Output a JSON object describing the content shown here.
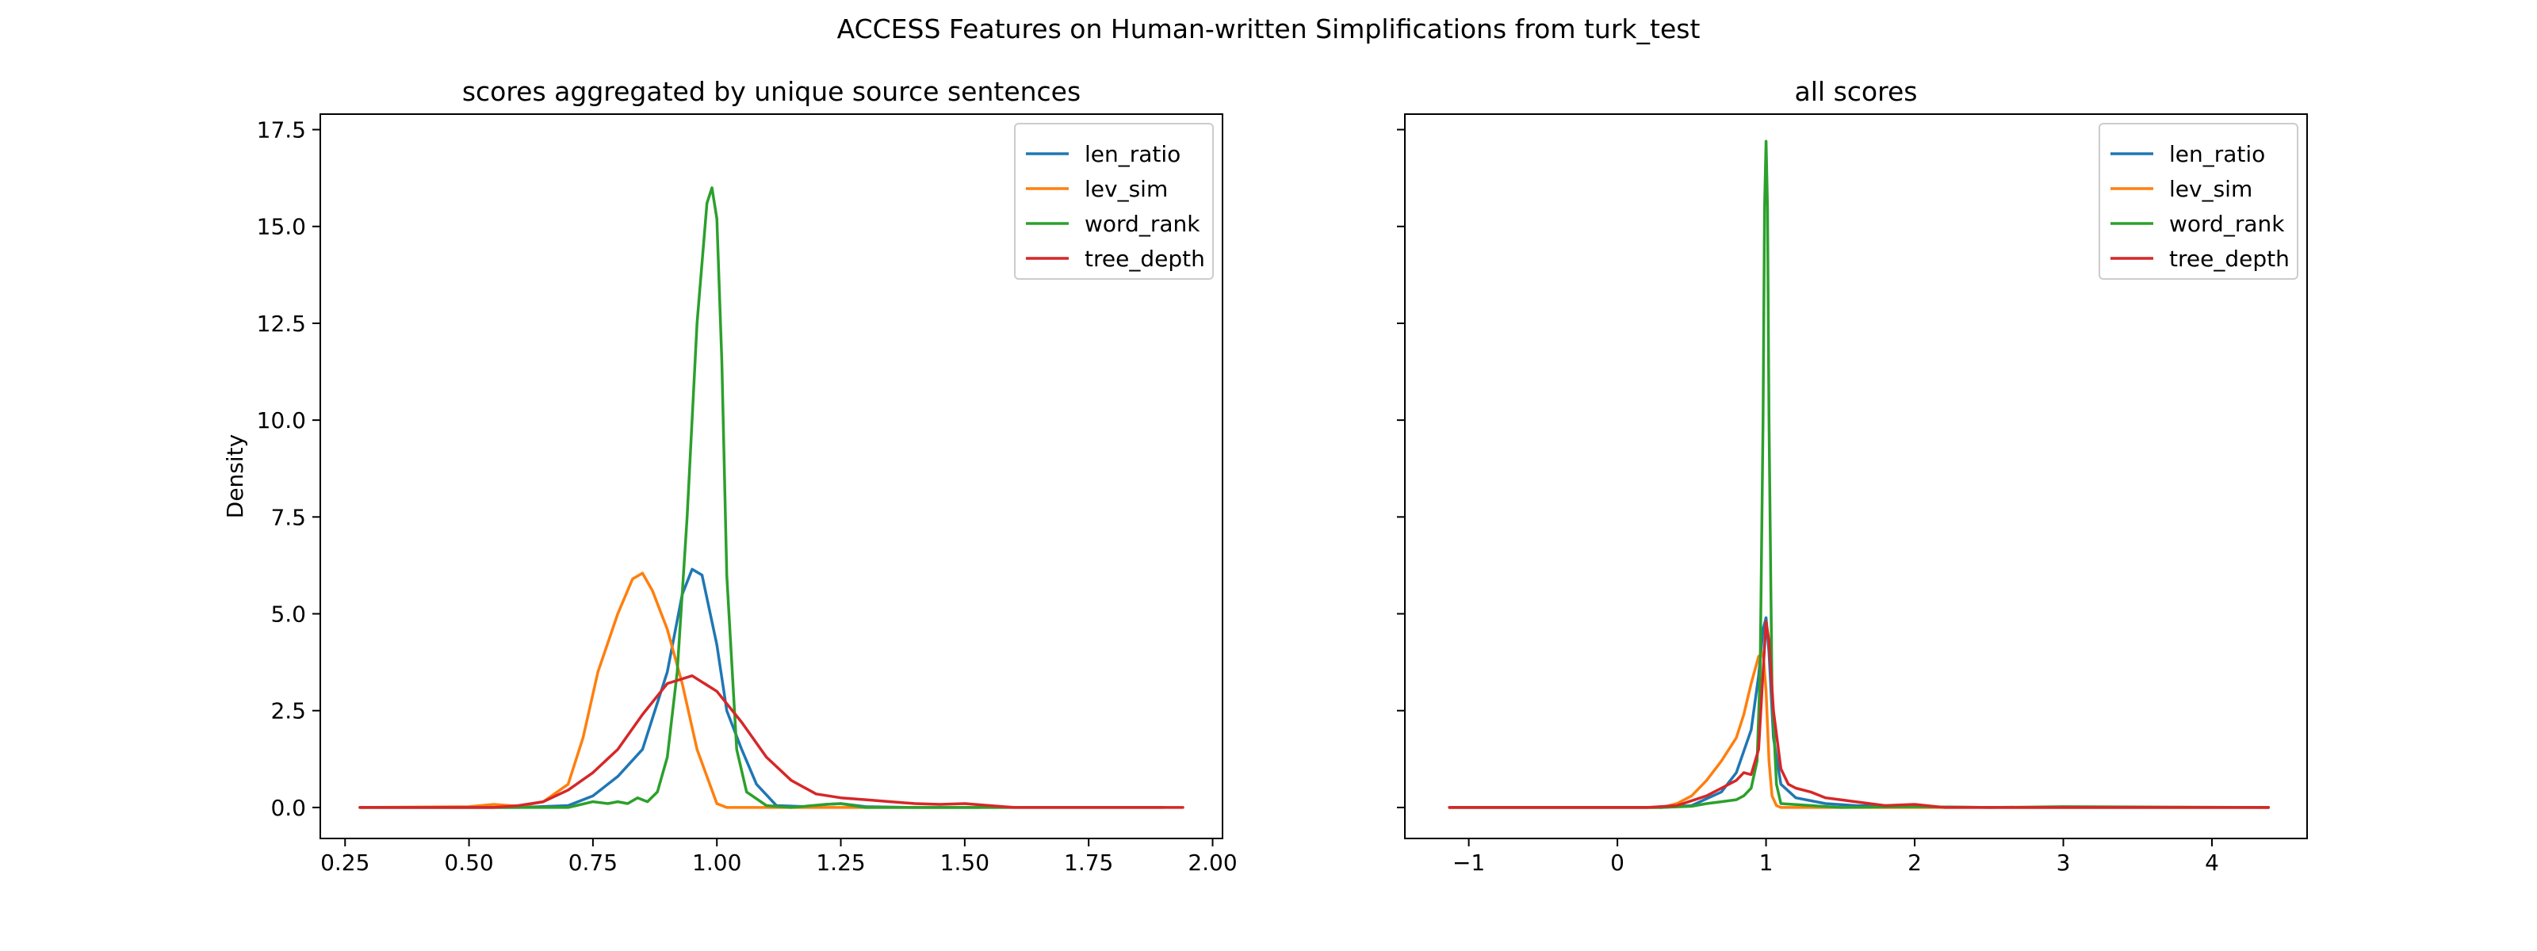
{
  "suptitle": "ACCESS Features on Human-written Simplifications from turk_test",
  "chart_data": [
    {
      "type": "line",
      "title": "scores aggregated by unique source sentences",
      "xlabel": "",
      "ylabel": "Density",
      "xlim": [
        0.2,
        2.02
      ],
      "ylim": [
        -0.8,
        17.9
      ],
      "xticks": [
        0.25,
        0.5,
        0.75,
        1.0,
        1.25,
        1.5,
        1.75,
        2.0
      ],
      "xtick_labels": [
        "0.25",
        "0.50",
        "0.75",
        "1.00",
        "1.25",
        "1.50",
        "1.75",
        "2.00"
      ],
      "yticks": [
        0.0,
        2.5,
        5.0,
        7.5,
        10.0,
        12.5,
        15.0,
        17.5
      ],
      "ytick_labels": [
        "0.0",
        "2.5",
        "5.0",
        "7.5",
        "10.0",
        "12.5",
        "15.0",
        "17.5"
      ],
      "legend_position": "top-right",
      "grid": false,
      "series": [
        {
          "name": "len_ratio",
          "color": "#1f77b4",
          "x": [
            0.28,
            0.6,
            0.7,
            0.75,
            0.8,
            0.85,
            0.9,
            0.93,
            0.95,
            0.97,
            1.0,
            1.02,
            1.05,
            1.08,
            1.12,
            1.18,
            1.22,
            1.25,
            1.3,
            1.4,
            1.53
          ],
          "y": [
            0.0,
            0.0,
            0.05,
            0.3,
            0.8,
            1.5,
            3.5,
            5.5,
            6.15,
            6.0,
            4.2,
            2.5,
            1.5,
            0.6,
            0.05,
            0.02,
            0.08,
            0.1,
            0.02,
            0.0,
            0.0
          ]
        },
        {
          "name": "lev_sim",
          "color": "#ff7f0e",
          "x": [
            0.28,
            0.5,
            0.55,
            0.6,
            0.65,
            0.7,
            0.73,
            0.76,
            0.8,
            0.83,
            0.85,
            0.87,
            0.9,
            0.93,
            0.96,
            1.0,
            1.02,
            1.05,
            1.2,
            1.6
          ],
          "y": [
            0.0,
            0.02,
            0.08,
            0.03,
            0.15,
            0.6,
            1.8,
            3.5,
            5.0,
            5.9,
            6.05,
            5.6,
            4.6,
            3.2,
            1.5,
            0.1,
            0.0,
            0.0,
            0.0,
            0.0
          ]
        },
        {
          "name": "word_rank",
          "color": "#2ca02c",
          "x": [
            0.28,
            0.7,
            0.75,
            0.78,
            0.8,
            0.82,
            0.84,
            0.86,
            0.88,
            0.9,
            0.92,
            0.94,
            0.96,
            0.98,
            0.99,
            1.0,
            1.01,
            1.02,
            1.04,
            1.06,
            1.1,
            1.15,
            1.22,
            1.25,
            1.3,
            1.6,
            1.9
          ],
          "y": [
            0.0,
            0.0,
            0.15,
            0.1,
            0.15,
            0.1,
            0.25,
            0.15,
            0.4,
            1.3,
            3.5,
            7.5,
            12.5,
            15.6,
            16.0,
            15.2,
            11.5,
            6.0,
            1.5,
            0.4,
            0.05,
            0.0,
            0.08,
            0.1,
            0.0,
            0.0,
            0.0
          ]
        },
        {
          "name": "tree_depth",
          "color": "#d62728",
          "x": [
            0.28,
            0.55,
            0.6,
            0.65,
            0.7,
            0.75,
            0.8,
            0.85,
            0.9,
            0.95,
            1.0,
            1.05,
            1.1,
            1.15,
            1.2,
            1.25,
            1.3,
            1.35,
            1.4,
            1.45,
            1.5,
            1.55,
            1.6,
            1.7,
            1.94
          ],
          "y": [
            0.0,
            0.0,
            0.05,
            0.15,
            0.45,
            0.9,
            1.5,
            2.4,
            3.2,
            3.4,
            3.0,
            2.2,
            1.3,
            0.7,
            0.35,
            0.25,
            0.2,
            0.15,
            0.1,
            0.08,
            0.1,
            0.05,
            0.0,
            0.0,
            0.0
          ]
        }
      ]
    },
    {
      "type": "line",
      "title": "all scores",
      "xlabel": "",
      "ylabel": "",
      "xlim": [
        -1.43,
        4.64
      ],
      "ylim": [
        -0.8,
        17.9
      ],
      "xticks": [
        -1,
        0,
        1,
        2,
        3,
        4
      ],
      "xtick_labels": [
        "−1",
        "0",
        "1",
        "2",
        "3",
        "4"
      ],
      "yticks": [
        0.0,
        2.5,
        5.0,
        7.5,
        10.0,
        12.5,
        15.0,
        17.5
      ],
      "ytick_labels": [],
      "legend_position": "top-right",
      "grid": false,
      "series": [
        {
          "name": "len_ratio",
          "color": "#1f77b4",
          "x": [
            -1.13,
            0.3,
            0.5,
            0.7,
            0.8,
            0.9,
            0.95,
            0.98,
            1.0,
            1.02,
            1.05,
            1.1,
            1.2,
            1.4,
            1.6,
            2.0,
            2.5,
            4.38
          ],
          "y": [
            0.0,
            0.0,
            0.05,
            0.4,
            0.9,
            2.0,
            3.4,
            4.6,
            4.9,
            4.0,
            1.8,
            0.6,
            0.25,
            0.1,
            0.05,
            0.02,
            0.0,
            0.0
          ]
        },
        {
          "name": "lev_sim",
          "color": "#ff7f0e",
          "x": [
            -1.13,
            0.3,
            0.4,
            0.5,
            0.6,
            0.7,
            0.8,
            0.85,
            0.9,
            0.95,
            0.98,
            1.0,
            1.02,
            1.04,
            1.07,
            1.1,
            1.2,
            4.38
          ],
          "y": [
            0.0,
            0.0,
            0.1,
            0.3,
            0.7,
            1.2,
            1.8,
            2.4,
            3.2,
            3.9,
            4.0,
            3.0,
            1.2,
            0.3,
            0.05,
            0.0,
            0.0,
            0.0
          ]
        },
        {
          "name": "word_rank",
          "color": "#2ca02c",
          "x": [
            -1.13,
            0.3,
            0.5,
            0.6,
            0.7,
            0.8,
            0.85,
            0.9,
            0.94,
            0.96,
            0.98,
            0.99,
            1.0,
            1.01,
            1.02,
            1.04,
            1.07,
            1.1,
            1.5,
            2.0,
            2.5,
            3.0,
            4.38
          ],
          "y": [
            0.0,
            0.0,
            0.03,
            0.1,
            0.15,
            0.2,
            0.3,
            0.5,
            1.2,
            3.5,
            10.0,
            15.5,
            17.2,
            15.5,
            10.0,
            3.0,
            0.6,
            0.1,
            0.0,
            0.02,
            0.0,
            0.02,
            0.0
          ]
        },
        {
          "name": "tree_depth",
          "color": "#d62728",
          "x": [
            -1.13,
            0.2,
            0.4,
            0.6,
            0.7,
            0.8,
            0.85,
            0.9,
            0.95,
            0.98,
            1.0,
            1.02,
            1.05,
            1.1,
            1.15,
            1.2,
            1.3,
            1.4,
            1.5,
            1.6,
            1.8,
            2.0,
            2.2,
            4.38
          ],
          "y": [
            0.0,
            0.0,
            0.05,
            0.3,
            0.5,
            0.7,
            0.9,
            0.85,
            1.5,
            3.5,
            4.8,
            4.3,
            2.5,
            1.0,
            0.6,
            0.5,
            0.4,
            0.25,
            0.2,
            0.15,
            0.05,
            0.08,
            0.0,
            0.0
          ]
        }
      ]
    }
  ]
}
